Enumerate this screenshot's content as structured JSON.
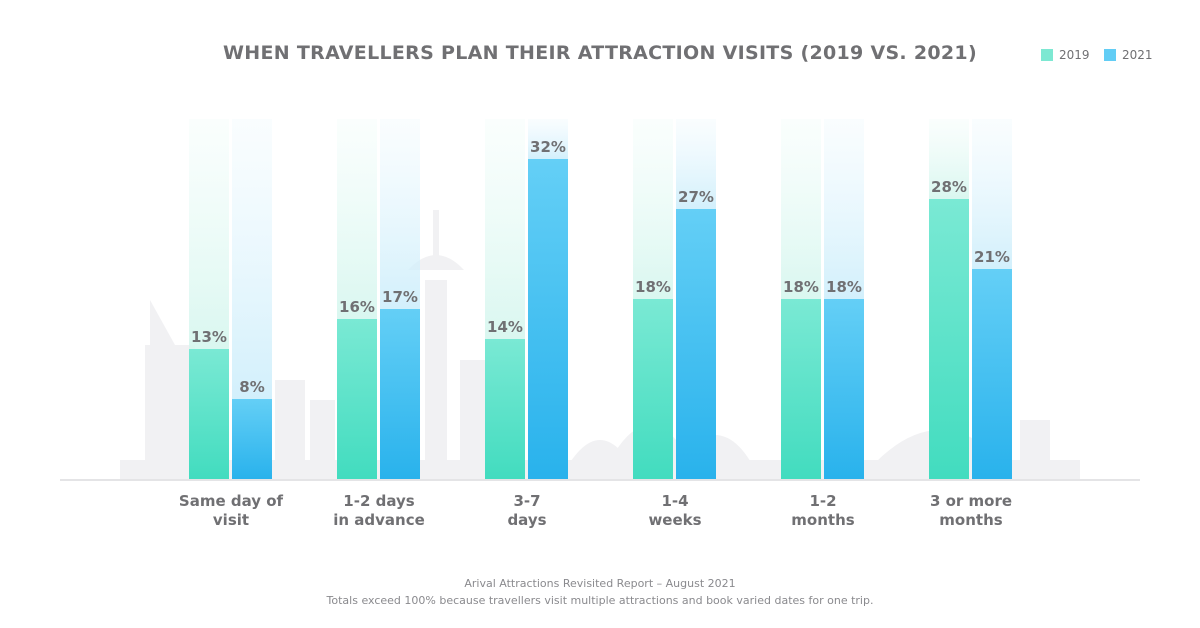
{
  "chart_data": {
    "type": "bar",
    "title": "WHEN TRAVELLERS PLAN THEIR ATTRACTION VISITS (2019 VS. 2021)",
    "categories": [
      [
        "Same day of",
        "visit"
      ],
      [
        "1-2 days",
        "in advance"
      ],
      [
        "3-7",
        "days"
      ],
      [
        "1-4",
        "weeks"
      ],
      [
        "1-2",
        "months"
      ],
      [
        "3 or more",
        "months"
      ]
    ],
    "series": [
      {
        "name": "2019",
        "values": [
          13,
          16,
          14,
          18,
          18,
          28
        ],
        "color": "#5ee2c6"
      },
      {
        "name": "2021",
        "values": [
          8,
          17,
          32,
          27,
          18,
          21
        ],
        "color": "#4cc3f0"
      }
    ],
    "value_format": "%",
    "ylim": [
      0,
      36
    ],
    "legend": "top-right",
    "grid": false
  },
  "footer": {
    "source": "Arival Attractions Revisited Report – August 2021",
    "note": "Totals exceed 100% because travellers visit multiple attractions and book varied dates for one trip."
  }
}
